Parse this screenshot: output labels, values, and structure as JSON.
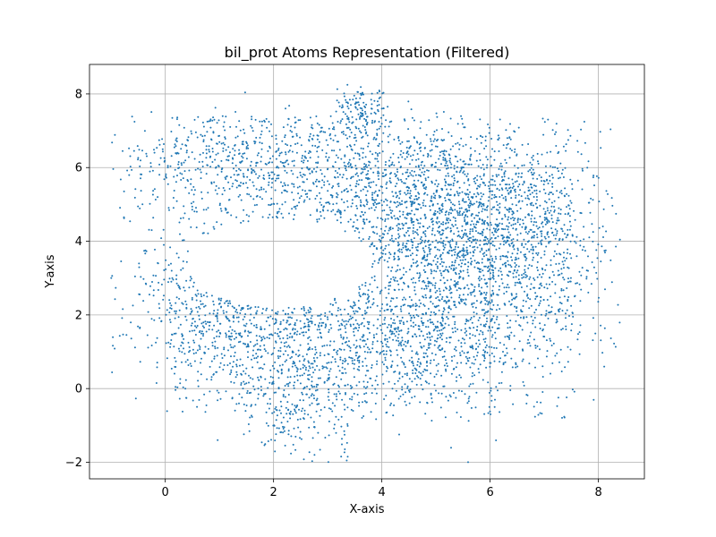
{
  "chart_data": {
    "type": "scatter",
    "title": "bil_prot Atoms Representation (Filtered)",
    "xlabel": "X-axis",
    "ylabel": "Y-axis",
    "xlim": [
      -1.4,
      8.85
    ],
    "ylim": [
      -2.45,
      8.8
    ],
    "xticks": [
      0,
      2,
      4,
      6,
      8
    ],
    "yticks": [
      -2,
      0,
      2,
      4,
      6,
      8
    ],
    "xtick_labels": [
      "0",
      "2",
      "4",
      "6",
      "8"
    ],
    "ytick_labels": [
      "−2",
      "0",
      "2",
      "4",
      "6",
      "8"
    ],
    "grid": true,
    "color": "#1f77b4",
    "marker_size": 1,
    "approx_point_count": 5500,
    "distribution": {
      "description_regions": [
        {
          "cx": 2.0,
          "cy": 6.2,
          "sx": 1.6,
          "sy": 0.9,
          "weight": 0.17
        },
        {
          "cx": 4.6,
          "cy": 5.2,
          "sx": 0.9,
          "sy": 1.1,
          "weight": 0.12
        },
        {
          "cx": 6.3,
          "cy": 4.6,
          "sx": 1.0,
          "sy": 1.3,
          "weight": 0.14
        },
        {
          "cx": 5.2,
          "cy": 2.4,
          "sx": 1.1,
          "sy": 1.5,
          "weight": 0.22
        },
        {
          "cx": 1.2,
          "cy": 2.3,
          "sx": 1.0,
          "sy": 1.1,
          "weight": 0.12
        },
        {
          "cx": 2.8,
          "cy": 1.0,
          "sx": 1.3,
          "sy": 0.9,
          "weight": 0.13
        },
        {
          "cx": 7.4,
          "cy": 3.2,
          "sx": 0.7,
          "sy": 1.8,
          "weight": 0.05
        },
        {
          "cx": 2.5,
          "cy": -0.8,
          "sx": 0.6,
          "sy": 0.6,
          "weight": 0.03
        },
        {
          "cx": 3.6,
          "cy": 7.5,
          "sx": 0.3,
          "sy": 0.4,
          "weight": 0.02
        }
      ],
      "hole": {
        "cx": 2.1,
        "cy": 3.4,
        "rx": 1.7,
        "ry": 1.2
      }
    }
  }
}
